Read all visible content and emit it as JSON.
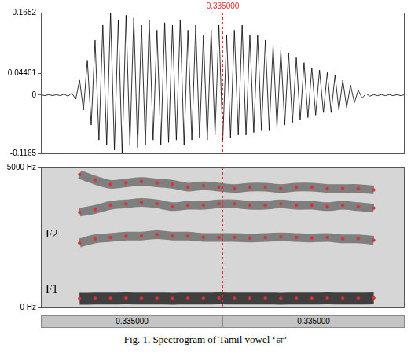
{
  "chart_data": [
    {
      "type": "line",
      "color": "#000000",
      "grid": false,
      "tick_labels": "y",
      "xlim": [
        0.1,
        0.57
      ],
      "ylim": [
        -0.1165,
        0.1652
      ],
      "yticks": [
        -0.1165,
        0,
        0.04401,
        0.1652
      ],
      "annotations": [
        {
          "x": 0.335,
          "label": "0.335000"
        }
      ],
      "x": [
        0.1,
        0.105,
        0.11,
        0.115,
        0.12,
        0.125,
        0.13,
        0.135,
        0.14,
        0.145,
        0.15,
        0.155,
        0.16,
        0.165,
        0.17,
        0.175,
        0.18,
        0.185,
        0.19,
        0.195,
        0.2,
        0.205,
        0.21,
        0.215,
        0.22,
        0.225,
        0.23,
        0.235,
        0.24,
        0.245,
        0.25,
        0.255,
        0.26,
        0.265,
        0.27,
        0.275,
        0.28,
        0.285,
        0.29,
        0.295,
        0.3,
        0.305,
        0.31,
        0.315,
        0.32,
        0.325,
        0.33,
        0.335,
        0.34,
        0.345,
        0.35,
        0.355,
        0.36,
        0.365,
        0.37,
        0.375,
        0.38,
        0.385,
        0.39,
        0.395,
        0.4,
        0.405,
        0.41,
        0.415,
        0.42,
        0.425,
        0.43,
        0.435,
        0.44,
        0.445,
        0.45,
        0.455,
        0.46,
        0.465,
        0.47,
        0.475,
        0.48,
        0.485,
        0.49,
        0.495,
        0.5,
        0.505,
        0.51,
        0.515,
        0.52,
        0.525,
        0.53,
        0.535,
        0.54,
        0.545,
        0.55,
        0.555,
        0.56,
        0.565,
        0.57
      ],
      "values": [
        0.001,
        -0.001,
        0.001,
        -0.001,
        0.001,
        -0.001,
        0.002,
        -0.002,
        0.004,
        -0.008,
        0.03,
        -0.03,
        0.07,
        -0.06,
        0.11,
        -0.09,
        0.14,
        -0.1,
        0.1652,
        -0.11,
        0.15,
        -0.1165,
        0.16,
        -0.1,
        0.155,
        -0.105,
        0.14,
        -0.1,
        0.15,
        -0.09,
        0.13,
        -0.1,
        0.145,
        -0.095,
        0.14,
        -0.09,
        0.15,
        -0.1,
        0.13,
        -0.09,
        0.14,
        -0.085,
        0.12,
        -0.09,
        0.13,
        -0.08,
        0.14,
        -0.09,
        0.12,
        -0.085,
        0.13,
        -0.08,
        0.14,
        -0.08,
        0.12,
        -0.075,
        0.12,
        -0.07,
        0.11,
        -0.07,
        0.1,
        -0.065,
        0.09,
        -0.06,
        0.085,
        -0.055,
        0.075,
        -0.05,
        0.065,
        -0.045,
        0.055,
        -0.04,
        0.05,
        -0.035,
        0.045,
        -0.035,
        0.04,
        -0.03,
        0.03,
        -0.025,
        0.02,
        -0.015,
        0.01,
        -0.006,
        0.003,
        -0.002,
        0.001,
        -0.001,
        0.001,
        -0.001,
        0.001,
        -0.001,
        0.001,
        -0.001,
        0.001
      ]
    },
    {
      "type": "scatter",
      "marker": "circle",
      "grid": false,
      "tick_labels": "y",
      "xlim": [
        0.1,
        0.57
      ],
      "ylim": [
        0,
        5000
      ],
      "yticks": [
        {
          "value": 0,
          "label": "0 Hz"
        },
        {
          "value": 5000,
          "label": "5000 Hz"
        }
      ],
      "annotations": [
        {
          "x": 0.335
        }
      ],
      "x": [
        0.15,
        0.17,
        0.19,
        0.21,
        0.23,
        0.25,
        0.27,
        0.29,
        0.31,
        0.33,
        0.35,
        0.37,
        0.39,
        0.41,
        0.43,
        0.45,
        0.47,
        0.49,
        0.51,
        0.53
      ],
      "series": [
        {
          "name": "F1",
          "color": "#e03030",
          "values": [
            320,
            330,
            330,
            335,
            330,
            330,
            325,
            330,
            330,
            335,
            330,
            330,
            330,
            325,
            330,
            330,
            335,
            330,
            330,
            335
          ]
        },
        {
          "name": "F2",
          "color": "#e03030",
          "values": [
            2300,
            2450,
            2500,
            2550,
            2550,
            2600,
            2550,
            2550,
            2500,
            2500,
            2500,
            2480,
            2500,
            2520,
            2500,
            2480,
            2500,
            2450,
            2450,
            2400
          ]
        },
        {
          "color": "#e03030",
          "values": [
            3400,
            3500,
            3650,
            3700,
            3750,
            3700,
            3600,
            3650,
            3650,
            3700,
            3700,
            3650,
            3650,
            3700,
            3650,
            3650,
            3600,
            3650,
            3600,
            3550
          ]
        },
        {
          "color": "#e03030",
          "values": [
            4750,
            4550,
            4400,
            4450,
            4500,
            4450,
            4400,
            4300,
            4350,
            4300,
            4250,
            4300,
            4300,
            4250,
            4300,
            4300,
            4250,
            4250,
            4250,
            4200
          ]
        }
      ],
      "time_bar": [
        "0.335000",
        "0.335000"
      ]
    }
  ],
  "caption": "Fig. 1. Spectrogram of Tamil vowel ‘எ’"
}
